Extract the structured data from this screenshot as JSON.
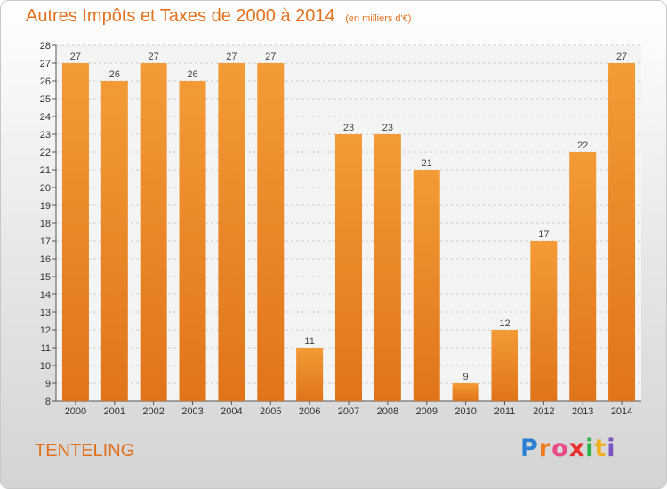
{
  "chart_data": {
    "type": "bar",
    "title": "Autres Impôts et Taxes de 2000 à 2014",
    "subtitle": "(en milliers d'€)",
    "categories": [
      "2000",
      "2001",
      "2002",
      "2003",
      "2004",
      "2005",
      "2006",
      "2007",
      "2008",
      "2009",
      "2010",
      "2011",
      "2012",
      "2013",
      "2014"
    ],
    "values": [
      27,
      26,
      27,
      26,
      27,
      27,
      11,
      23,
      23,
      21,
      9,
      12,
      17,
      22,
      27
    ],
    "ylim": [
      8,
      28
    ],
    "yticks": [
      8,
      9,
      10,
      11,
      12,
      13,
      14,
      15,
      16,
      17,
      18,
      19,
      20,
      21,
      22,
      23,
      24,
      25,
      26,
      27,
      28
    ],
    "grid": true,
    "bar_color": "#f39b36",
    "bar_color_dark": "#e0741a"
  },
  "commune": "TENTELING",
  "logo": {
    "letters": [
      "P",
      "r",
      "o",
      "x",
      "i",
      "t",
      "i"
    ],
    "colors": [
      "#2b7fd4",
      "#f07c1c",
      "#e94b8a",
      "#e9302b",
      "#2cb34a",
      "#f2b01e",
      "#7b56c2"
    ]
  }
}
